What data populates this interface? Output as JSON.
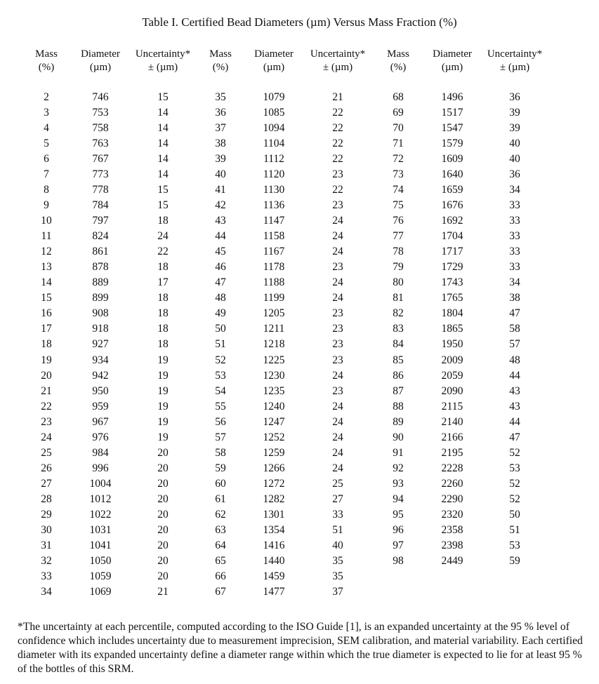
{
  "title": "Table I.  Certified Bead Diameters (µm) Versus Mass Fraction (%)",
  "headers": {
    "mass": [
      "Mass",
      "(%)"
    ],
    "diameter": [
      "Diameter",
      "(µm)"
    ],
    "uncertainty": [
      "Uncertainty*",
      "± (µm)"
    ]
  },
  "blocks": [
    [
      [
        2,
        746,
        15
      ],
      [
        3,
        753,
        14
      ],
      [
        4,
        758,
        14
      ],
      [
        5,
        763,
        14
      ],
      [
        6,
        767,
        14
      ],
      [
        7,
        773,
        14
      ],
      [
        8,
        778,
        15
      ],
      [
        9,
        784,
        15
      ],
      [
        10,
        797,
        18
      ],
      [
        11,
        824,
        24
      ],
      [
        12,
        861,
        22
      ],
      [
        13,
        878,
        18
      ],
      [
        14,
        889,
        17
      ],
      [
        15,
        899,
        18
      ],
      [
        16,
        908,
        18
      ],
      [
        17,
        918,
        18
      ],
      [
        18,
        927,
        18
      ],
      [
        19,
        934,
        19
      ],
      [
        20,
        942,
        19
      ],
      [
        21,
        950,
        19
      ],
      [
        22,
        959,
        19
      ],
      [
        23,
        967,
        19
      ],
      [
        24,
        976,
        19
      ],
      [
        25,
        984,
        20
      ],
      [
        26,
        996,
        20
      ],
      [
        27,
        1004,
        20
      ],
      [
        28,
        1012,
        20
      ],
      [
        29,
        1022,
        20
      ],
      [
        30,
        1031,
        20
      ],
      [
        31,
        1041,
        20
      ],
      [
        32,
        1050,
        20
      ],
      [
        33,
        1059,
        20
      ],
      [
        34,
        1069,
        21
      ]
    ],
    [
      [
        35,
        1079,
        21
      ],
      [
        36,
        1085,
        22
      ],
      [
        37,
        1094,
        22
      ],
      [
        38,
        1104,
        22
      ],
      [
        39,
        1112,
        22
      ],
      [
        40,
        1120,
        23
      ],
      [
        41,
        1130,
        22
      ],
      [
        42,
        1136,
        23
      ],
      [
        43,
        1147,
        24
      ],
      [
        44,
        1158,
        24
      ],
      [
        45,
        1167,
        24
      ],
      [
        46,
        1178,
        23
      ],
      [
        47,
        1188,
        24
      ],
      [
        48,
        1199,
        24
      ],
      [
        49,
        1205,
        23
      ],
      [
        50,
        1211,
        23
      ],
      [
        51,
        1218,
        23
      ],
      [
        52,
        1225,
        23
      ],
      [
        53,
        1230,
        24
      ],
      [
        54,
        1235,
        23
      ],
      [
        55,
        1240,
        24
      ],
      [
        56,
        1247,
        24
      ],
      [
        57,
        1252,
        24
      ],
      [
        58,
        1259,
        24
      ],
      [
        59,
        1266,
        24
      ],
      [
        60,
        1272,
        25
      ],
      [
        61,
        1282,
        27
      ],
      [
        62,
        1301,
        33
      ],
      [
        63,
        1354,
        51
      ],
      [
        64,
        1416,
        40
      ],
      [
        65,
        1440,
        35
      ],
      [
        66,
        1459,
        35
      ],
      [
        67,
        1477,
        37
      ]
    ],
    [
      [
        68,
        1496,
        36
      ],
      [
        69,
        1517,
        39
      ],
      [
        70,
        1547,
        39
      ],
      [
        71,
        1579,
        40
      ],
      [
        72,
        1609,
        40
      ],
      [
        73,
        1640,
        36
      ],
      [
        74,
        1659,
        34
      ],
      [
        75,
        1676,
        33
      ],
      [
        76,
        1692,
        33
      ],
      [
        77,
        1704,
        33
      ],
      [
        78,
        1717,
        33
      ],
      [
        79,
        1729,
        33
      ],
      [
        80,
        1743,
        34
      ],
      [
        81,
        1765,
        38
      ],
      [
        82,
        1804,
        47
      ],
      [
        83,
        1865,
        58
      ],
      [
        84,
        1950,
        57
      ],
      [
        85,
        2009,
        48
      ],
      [
        86,
        2059,
        44
      ],
      [
        87,
        2090,
        43
      ],
      [
        88,
        2115,
        43
      ],
      [
        89,
        2140,
        44
      ],
      [
        90,
        2166,
        47
      ],
      [
        91,
        2195,
        52
      ],
      [
        92,
        2228,
        53
      ],
      [
        93,
        2260,
        52
      ],
      [
        94,
        2290,
        52
      ],
      [
        95,
        2320,
        50
      ],
      [
        96,
        2358,
        51
      ],
      [
        97,
        2398,
        53
      ],
      [
        98,
        2449,
        59
      ]
    ]
  ],
  "footnote": "*The uncertainty at each percentile, computed according to the ISO Guide [1], is an expanded uncertainty at the 95 % level of confidence which includes uncertainty due to measurement imprecision, SEM calibration, and material variability. Each certified diameter with its expanded uncertainty define a diameter range within which the true diameter is expected to lie for at least 95 % of the bottles of this SRM."
}
